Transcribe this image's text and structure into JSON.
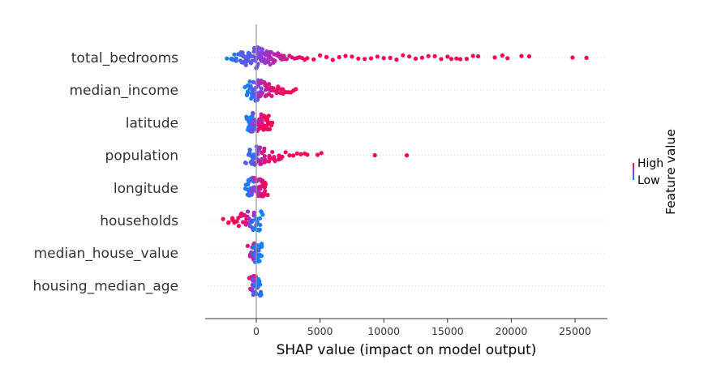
{
  "chart_data": {
    "type": "scatter",
    "subtype": "shap-beeswarm",
    "xlabel": "SHAP value (impact on model output)",
    "ylabel": "",
    "xticks": [
      0,
      5000,
      10000,
      15000,
      20000,
      25000
    ],
    "xlim": [
      -4000,
      27000
    ],
    "zero_line": 0,
    "grid": false,
    "legend": "colorbar-right",
    "colorbar": {
      "title": "Feature value",
      "high_label": "High",
      "low_label": "Low",
      "high_color": "#ff0052",
      "low_color": "#008bfb"
    },
    "features": [
      {
        "name": "total_bedrooms",
        "points": [
          [
            -2300,
            0.05
          ],
          [
            -2000,
            0.1
          ],
          [
            -1800,
            0.15
          ],
          [
            -1500,
            0.2
          ],
          [
            -1200,
            0.25
          ],
          [
            -1000,
            0.3
          ],
          [
            -800,
            0.35
          ],
          [
            -600,
            0.3
          ],
          [
            -400,
            0.3
          ],
          [
            -200,
            0.35
          ],
          [
            0,
            0.4
          ],
          [
            200,
            0.45
          ],
          [
            400,
            0.5
          ],
          [
            600,
            0.55
          ],
          [
            800,
            0.6
          ],
          [
            1000,
            0.62
          ],
          [
            1200,
            0.65
          ],
          [
            1400,
            0.68
          ],
          [
            1600,
            0.7
          ],
          [
            1800,
            0.72
          ],
          [
            2000,
            0.75
          ],
          [
            2200,
            0.78
          ],
          [
            2400,
            0.8
          ],
          [
            2600,
            0.82
          ],
          [
            2800,
            0.84
          ],
          [
            3000,
            0.86
          ],
          [
            3200,
            0.88
          ],
          [
            3400,
            0.9
          ],
          [
            3600,
            0.92
          ],
          [
            3800,
            0.94
          ],
          [
            4000,
            1
          ],
          [
            4500,
            1
          ],
          [
            5000,
            1
          ],
          [
            5500,
            1
          ],
          [
            6000,
            1
          ],
          [
            6500,
            1
          ],
          [
            7000,
            1
          ],
          [
            7500,
            1
          ],
          [
            8000,
            1
          ],
          [
            8500,
            1
          ],
          [
            9000,
            1
          ],
          [
            9500,
            1
          ],
          [
            10000,
            1
          ],
          [
            10500,
            1
          ],
          [
            11000,
            1
          ],
          [
            11500,
            1
          ],
          [
            12000,
            1
          ],
          [
            12500,
            1
          ],
          [
            13000,
            1
          ],
          [
            13500,
            1
          ],
          [
            14000,
            1
          ],
          [
            14500,
            1
          ],
          [
            15000,
            1
          ],
          [
            15300,
            1
          ],
          [
            15700,
            1
          ],
          [
            16000,
            1
          ],
          [
            16500,
            1
          ],
          [
            17000,
            1
          ],
          [
            17400,
            1
          ],
          [
            18700,
            1
          ],
          [
            19300,
            1
          ],
          [
            19700,
            1
          ],
          [
            20800,
            1
          ],
          [
            21400,
            1
          ],
          [
            24800,
            1
          ],
          [
            25900,
            1
          ]
        ]
      },
      {
        "name": "median_income",
        "points": [
          [
            -700,
            0.05
          ],
          [
            -500,
            0.08
          ],
          [
            -300,
            0.12
          ],
          [
            -100,
            0.2
          ],
          [
            0,
            0.3
          ],
          [
            150,
            0.4
          ],
          [
            300,
            0.55
          ],
          [
            500,
            0.65
          ],
          [
            700,
            0.75
          ],
          [
            900,
            0.8
          ],
          [
            1100,
            0.85
          ],
          [
            1300,
            0.88
          ],
          [
            1500,
            0.9
          ],
          [
            1700,
            0.92
          ],
          [
            1900,
            0.94
          ],
          [
            2100,
            0.95
          ],
          [
            2300,
            0.96
          ],
          [
            2500,
            0.97
          ],
          [
            2700,
            0.98
          ],
          [
            2900,
            0.99
          ],
          [
            3100,
            1
          ]
        ]
      },
      {
        "name": "latitude",
        "points": [
          [
            -500,
            0.05
          ],
          [
            -400,
            0.1
          ],
          [
            -300,
            0.15
          ],
          [
            -200,
            0.2
          ],
          [
            0,
            0.5
          ],
          [
            200,
            0.7
          ],
          [
            350,
            0.8
          ],
          [
            500,
            0.9
          ],
          [
            650,
            0.95
          ],
          [
            800,
            0.97
          ],
          [
            950,
            0.99
          ],
          [
            1050,
            1
          ]
        ]
      },
      {
        "name": "population",
        "points": [
          [
            -600,
            0.3
          ],
          [
            -400,
            0.2
          ],
          [
            -200,
            0.15
          ],
          [
            0,
            0.3
          ],
          [
            200,
            0.6
          ],
          [
            500,
            0.8
          ],
          [
            800,
            0.85
          ],
          [
            1100,
            0.88
          ],
          [
            1400,
            0.9
          ],
          [
            1700,
            0.92
          ],
          [
            2000,
            0.94
          ],
          [
            2300,
            0.95
          ],
          [
            2600,
            0.96
          ],
          [
            2900,
            0.97
          ],
          [
            3200,
            0.98
          ],
          [
            3500,
            0.99
          ],
          [
            3800,
            1
          ],
          [
            4000,
            1
          ],
          [
            4800,
            1
          ],
          [
            5100,
            1
          ],
          [
            9300,
            1
          ],
          [
            11800,
            1
          ]
        ]
      },
      {
        "name": "longitude",
        "points": [
          [
            -700,
            0.1
          ],
          [
            -500,
            0.15
          ],
          [
            -300,
            0.2
          ],
          [
            -150,
            0.25
          ],
          [
            0,
            0.5
          ],
          [
            150,
            0.7
          ],
          [
            300,
            0.8
          ],
          [
            450,
            0.85
          ],
          [
            600,
            0.9
          ],
          [
            750,
            0.95
          ]
        ]
      },
      {
        "name": "households",
        "points": [
          [
            -2600,
            1
          ],
          [
            -2200,
            1
          ],
          [
            -1900,
            1
          ],
          [
            -1600,
            1
          ],
          [
            -1300,
            0.95
          ],
          [
            -1000,
            0.9
          ],
          [
            -700,
            0.85
          ],
          [
            -400,
            0.6
          ],
          [
            -200,
            0.3
          ],
          [
            0,
            0.1
          ],
          [
            200,
            0.05
          ]
        ]
      },
      {
        "name": "median_house_value",
        "points": [
          [
            -400,
            0.9
          ],
          [
            -300,
            0.85
          ],
          [
            -200,
            0.7
          ],
          [
            -100,
            0.4
          ],
          [
            0,
            0.2
          ],
          [
            100,
            0.1
          ],
          [
            200,
            0.05
          ]
        ]
      },
      {
        "name": "housing_median_age",
        "points": [
          [
            -300,
            0.9
          ],
          [
            -200,
            0.8
          ],
          [
            -100,
            0.6
          ],
          [
            0,
            0.4
          ],
          [
            100,
            0.2
          ],
          [
            200,
            0.1
          ]
        ]
      }
    ]
  }
}
